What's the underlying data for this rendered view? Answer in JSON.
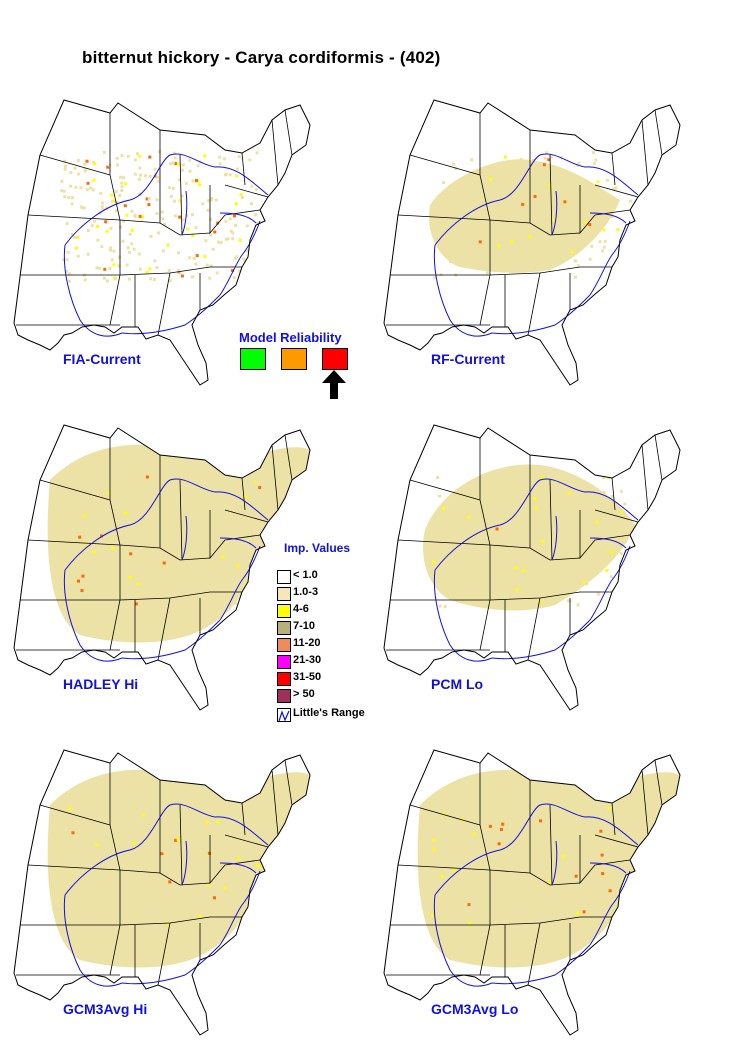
{
  "title": "bitternut hickory - Carya cordiformis - (402)",
  "panels": [
    {
      "label": "FIA-Current",
      "fill": "sparse"
    },
    {
      "label": "RF-Current",
      "fill": "current"
    },
    {
      "label": "HADLEY Hi",
      "fill": "wide"
    },
    {
      "label": "PCM Lo",
      "fill": "mid"
    },
    {
      "label": "GCM3Avg Hi",
      "fill": "wide"
    },
    {
      "label": "GCM3Avg Lo",
      "fill": "wide"
    }
  ],
  "model_reliability": {
    "title": "Model Reliability",
    "boxes": [
      {
        "color": "#00ff00"
      },
      {
        "color": "#ff9900"
      },
      {
        "color": "#ff0000"
      }
    ],
    "selected_index": 2
  },
  "legend": {
    "title": "Imp. Values",
    "items": [
      {
        "label": "< 1.0",
        "color": "#ffffff"
      },
      {
        "label": "1.0-3",
        "color": "#f7e6b8"
      },
      {
        "label": "4-6",
        "color": "#ffff00"
      },
      {
        "label": "7-10",
        "color": "#b8b07a"
      },
      {
        "label": "11-20",
        "color": "#f08c5a"
      },
      {
        "label": "21-30",
        "color": "#ff00ff"
      },
      {
        "label": "31-50",
        "color": "#ff0000"
      },
      {
        "label": "> 50",
        "color": "#a0305a"
      }
    ],
    "range_label": "Little's Range",
    "range_color": "#1010e0"
  },
  "colors": {
    "label": "#1010e0",
    "state_line": "#000000",
    "range_line": "#1010e0",
    "habitat_fill": "#ede2a6"
  }
}
